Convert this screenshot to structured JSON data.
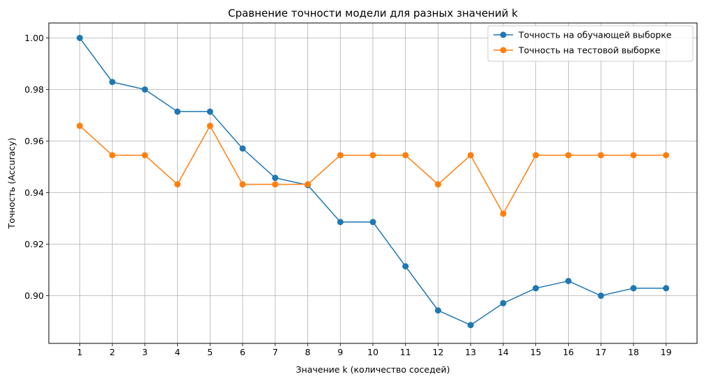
{
  "chart_data": {
    "type": "line",
    "title": "Сравнение точности модели для разных значений k",
    "xlabel": "Значение k (количество соседей)",
    "ylabel": "Точность (Accuracy)",
    "x": [
      1,
      2,
      3,
      4,
      5,
      6,
      7,
      8,
      9,
      10,
      11,
      12,
      13,
      14,
      15,
      16,
      17,
      18,
      19
    ],
    "xlim": [
      0.05,
      19.95
    ],
    "ylim": [
      0.8815,
      1.0058
    ],
    "yticks": [
      "0.90",
      "0.92",
      "0.94",
      "0.96",
      "0.98",
      "1.00"
    ],
    "ytick_values": [
      0.9,
      0.92,
      0.94,
      0.96,
      0.98,
      1.0
    ],
    "grid": true,
    "legend_position": "top-right",
    "series": [
      {
        "name": "Точность на обучающей выборке",
        "color": "#1f77b4",
        "values": [
          1.0,
          0.9829,
          0.98,
          0.9714,
          0.9714,
          0.9571,
          0.9457,
          0.9429,
          0.9286,
          0.9286,
          0.9114,
          0.8943,
          0.8886,
          0.8971,
          0.9029,
          0.9057,
          0.9,
          0.9029,
          0.9029
        ]
      },
      {
        "name": "Точность на тестовой выборке",
        "color": "#ff7f0e",
        "values": [
          0.9659,
          0.9545,
          0.9545,
          0.9432,
          0.9659,
          0.9432,
          0.9432,
          0.9432,
          0.9545,
          0.9545,
          0.9545,
          0.9432,
          0.9545,
          0.9318,
          0.9545,
          0.9545,
          0.9545,
          0.9545,
          0.9545
        ]
      }
    ]
  }
}
